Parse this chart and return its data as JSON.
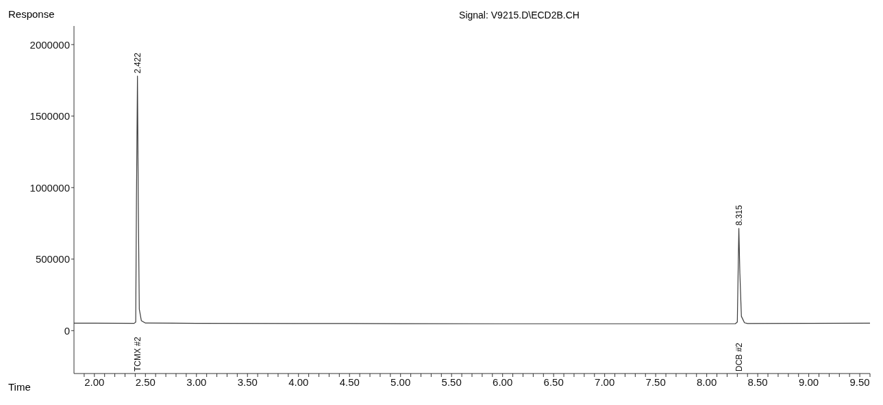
{
  "chart_data": {
    "type": "line",
    "title": "Signal: V9215.D\\ECD2B.CH",
    "xlabel": "Time",
    "ylabel": "Response",
    "x": [
      1.8,
      2.0,
      2.39,
      2.405,
      2.412,
      2.422,
      2.43,
      2.44,
      2.46,
      2.5,
      3.0,
      4.0,
      5.0,
      6.0,
      7.0,
      8.0,
      8.28,
      8.3,
      8.31,
      8.315,
      8.325,
      8.34,
      8.37,
      8.4,
      9.0,
      9.6
    ],
    "series": [
      {
        "color": "#3a3a3a",
        "values": [
          52000,
          52000,
          51000,
          60000,
          900000,
          1780000,
          900000,
          150000,
          70000,
          53000,
          51000,
          50000,
          49000,
          48000,
          48000,
          48000,
          48000,
          60000,
          500000,
          715000,
          400000,
          100000,
          55000,
          50000,
          51000,
          52000
        ]
      }
    ],
    "xlim": [
      1.8,
      9.6
    ],
    "xticks": [
      {
        "value": 1.9,
        "label": null
      },
      {
        "value": 2,
        "label": "2.00"
      },
      {
        "value": 2.1,
        "label": null
      },
      {
        "value": 2.2,
        "label": null
      },
      {
        "value": 2.3,
        "label": null
      },
      {
        "value": 2.4,
        "label": null
      },
      {
        "value": 2.5,
        "label": "2.50"
      },
      {
        "value": 2.6,
        "label": null
      },
      {
        "value": 2.7,
        "label": null
      },
      {
        "value": 2.8,
        "label": null
      },
      {
        "value": 2.9,
        "label": null
      },
      {
        "value": 3,
        "label": "3.00"
      },
      {
        "value": 3.1,
        "label": null
      },
      {
        "value": 3.2,
        "label": null
      },
      {
        "value": 3.3,
        "label": null
      },
      {
        "value": 3.4,
        "label": null
      },
      {
        "value": 3.5,
        "label": "3.50"
      },
      {
        "value": 3.6,
        "label": null
      },
      {
        "value": 3.7,
        "label": null
      },
      {
        "value": 3.8,
        "label": null
      },
      {
        "value": 3.9,
        "label": null
      },
      {
        "value": 4,
        "label": "4.00"
      },
      {
        "value": 4.1,
        "label": null
      },
      {
        "value": 4.2,
        "label": null
      },
      {
        "value": 4.3,
        "label": null
      },
      {
        "value": 4.4,
        "label": null
      },
      {
        "value": 4.5,
        "label": "4.50"
      },
      {
        "value": 4.6,
        "label": null
      },
      {
        "value": 4.7,
        "label": null
      },
      {
        "value": 4.8,
        "label": null
      },
      {
        "value": 4.9,
        "label": null
      },
      {
        "value": 5,
        "label": "5.00"
      },
      {
        "value": 5.1,
        "label": null
      },
      {
        "value": 5.2,
        "label": null
      },
      {
        "value": 5.3,
        "label": null
      },
      {
        "value": 5.4,
        "label": null
      },
      {
        "value": 5.5,
        "label": "5.50"
      },
      {
        "value": 5.6,
        "label": null
      },
      {
        "value": 5.7,
        "label": null
      },
      {
        "value": 5.8,
        "label": null
      },
      {
        "value": 5.9,
        "label": null
      },
      {
        "value": 6,
        "label": "6.00"
      },
      {
        "value": 6.1,
        "label": null
      },
      {
        "value": 6.2,
        "label": null
      },
      {
        "value": 6.3,
        "label": null
      },
      {
        "value": 6.4,
        "label": null
      },
      {
        "value": 6.5,
        "label": "6.50"
      },
      {
        "value": 6.6,
        "label": null
      },
      {
        "value": 6.7,
        "label": null
      },
      {
        "value": 6.8,
        "label": null
      },
      {
        "value": 6.9,
        "label": null
      },
      {
        "value": 7,
        "label": "7.00"
      },
      {
        "value": 7.1,
        "label": null
      },
      {
        "value": 7.2,
        "label": null
      },
      {
        "value": 7.3,
        "label": null
      },
      {
        "value": 7.4,
        "label": null
      },
      {
        "value": 7.5,
        "label": "7.50"
      },
      {
        "value": 7.6,
        "label": null
      },
      {
        "value": 7.7,
        "label": null
      },
      {
        "value": 7.8,
        "label": null
      },
      {
        "value": 7.9,
        "label": null
      },
      {
        "value": 8,
        "label": "8.00"
      },
      {
        "value": 8.1,
        "label": null
      },
      {
        "value": 8.2,
        "label": null
      },
      {
        "value": 8.3,
        "label": null
      },
      {
        "value": 8.4,
        "label": null
      },
      {
        "value": 8.5,
        "label": "8.50"
      },
      {
        "value": 8.6,
        "label": null
      },
      {
        "value": 8.7,
        "label": null
      },
      {
        "value": 8.8,
        "label": null
      },
      {
        "value": 8.9,
        "label": null
      },
      {
        "value": 9,
        "label": "9.00"
      },
      {
        "value": 9.1,
        "label": null
      },
      {
        "value": 9.2,
        "label": null
      },
      {
        "value": 9.3,
        "label": null
      },
      {
        "value": 9.4,
        "label": null
      },
      {
        "value": 9.5,
        "label": "9.50"
      },
      {
        "value": 9.6,
        "label": null
      }
    ],
    "ylim": [
      -300000,
      2130000
    ],
    "yticks": [
      0,
      500000,
      1000000,
      1500000,
      2000000
    ],
    "annotations": [
      {
        "text": "2.422",
        "x": 2.422,
        "y": 1780000
      },
      {
        "text": "8.315",
        "x": 8.315,
        "y": 715000
      },
      "TCMX #2",
      "DCB #2"
    ],
    "grid": false,
    "legend": false,
    "marker": "none",
    "line_style": "solid"
  }
}
